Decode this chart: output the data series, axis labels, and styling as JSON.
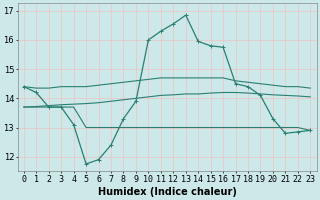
{
  "x": [
    0,
    1,
    2,
    3,
    4,
    5,
    6,
    7,
    8,
    9,
    10,
    11,
    12,
    13,
    14,
    15,
    16,
    17,
    18,
    19,
    20,
    21,
    22,
    23
  ],
  "humidex_main": [
    14.4,
    14.2,
    13.7,
    13.7,
    13.1,
    11.75,
    11.9,
    12.4,
    13.3,
    13.9,
    16.0,
    16.3,
    16.55,
    16.85,
    15.95,
    15.8,
    15.75,
    14.5,
    14.4,
    14.1,
    13.3,
    12.8,
    12.85,
    12.9
  ],
  "line_upper": [
    14.4,
    14.35,
    14.35,
    14.4,
    14.4,
    14.4,
    14.45,
    14.5,
    14.55,
    14.6,
    14.65,
    14.7,
    14.7,
    14.7,
    14.7,
    14.7,
    14.7,
    14.6,
    14.55,
    14.5,
    14.45,
    14.4,
    14.4,
    14.35
  ],
  "line_mid": [
    13.7,
    13.72,
    13.75,
    13.78,
    13.8,
    13.82,
    13.85,
    13.9,
    13.95,
    14.0,
    14.05,
    14.1,
    14.12,
    14.15,
    14.15,
    14.18,
    14.2,
    14.2,
    14.18,
    14.15,
    14.12,
    14.1,
    14.08,
    14.05
  ],
  "line_lower": [
    13.7,
    13.7,
    13.7,
    13.7,
    13.7,
    13.0,
    13.0,
    13.0,
    13.0,
    13.0,
    13.0,
    13.0,
    13.0,
    13.0,
    13.0,
    13.0,
    13.0,
    13.0,
    13.0,
    13.0,
    13.0,
    13.0,
    13.0,
    12.9
  ],
  "color_main": "#2a7f72",
  "bg_color": "#cce8e8",
  "grid_color": "#e8c8c8",
  "ylim": [
    11.5,
    17.25
  ],
  "yticks": [
    12,
    13,
    14,
    15,
    16,
    17
  ],
  "xlim": [
    -0.5,
    23.5
  ],
  "xlabel": "Humidex (Indice chaleur)",
  "xlabel_fontsize": 7,
  "tick_fontsize": 6
}
